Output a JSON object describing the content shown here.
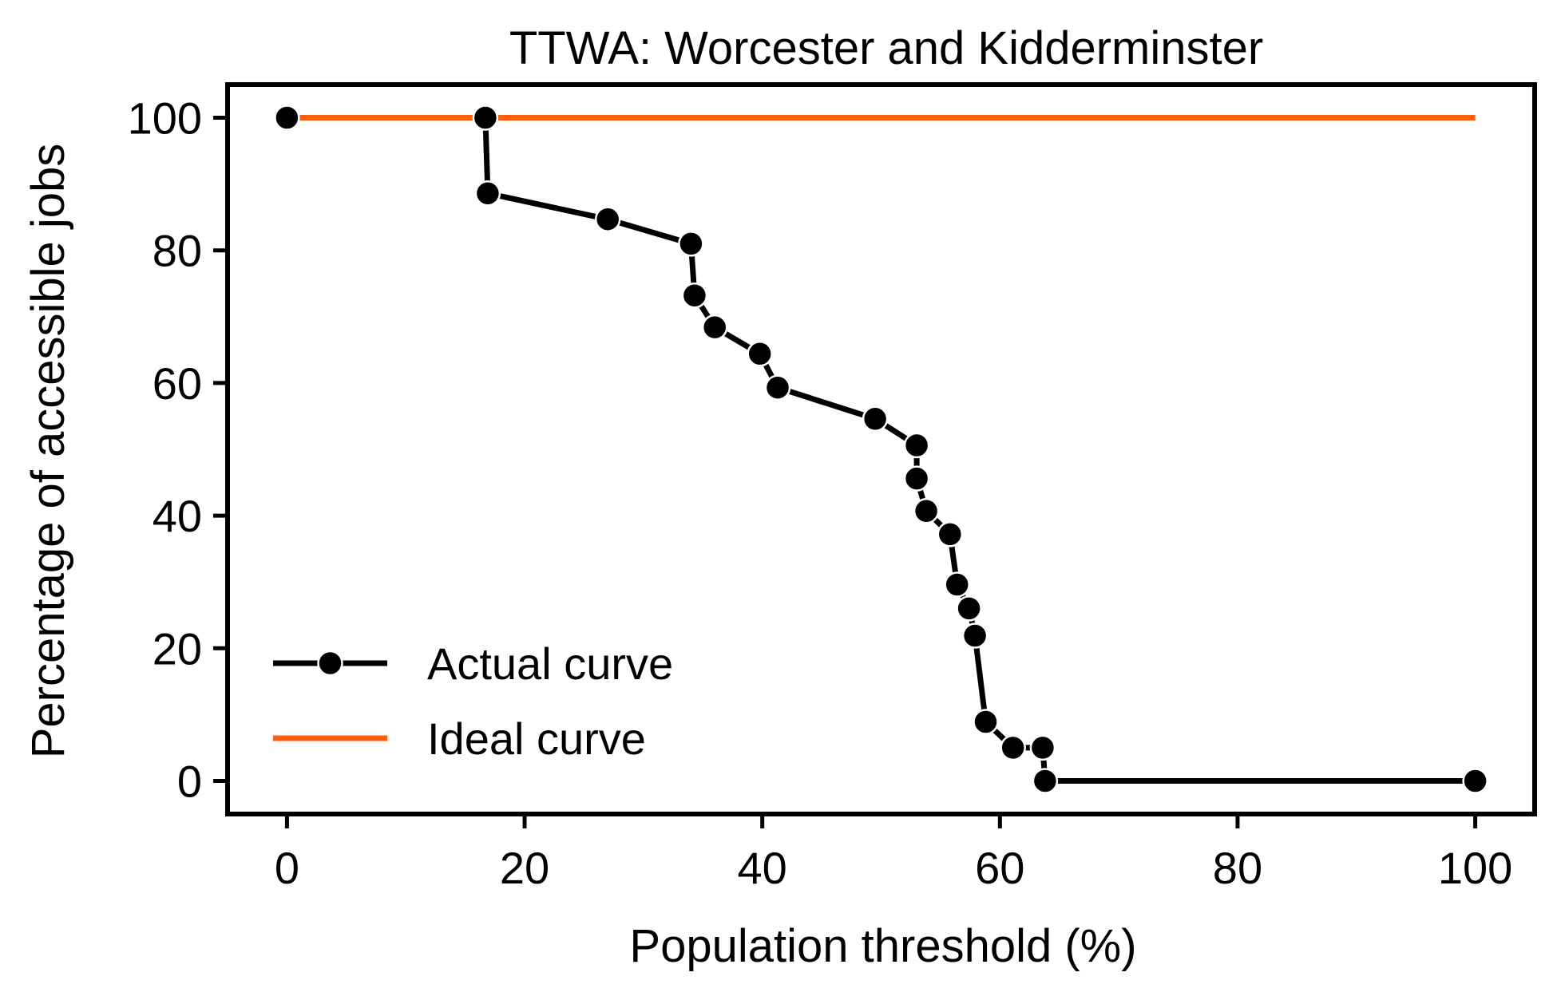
{
  "chart_data": {
    "type": "line",
    "title": "TTWA: Worcester and Kidderminster",
    "xlabel": "Population threshold (%)",
    "ylabel": "Percentage of accessible jobs",
    "xlim": [
      -5,
      105
    ],
    "ylim": [
      -5,
      105
    ],
    "xticks": [
      0,
      20,
      40,
      60,
      80,
      100
    ],
    "yticks": [
      0,
      20,
      40,
      60,
      80,
      100
    ],
    "xtick_labels": [
      "0",
      "20",
      "40",
      "60",
      "80",
      "100"
    ],
    "ytick_labels": [
      "0",
      "20",
      "40",
      "60",
      "80",
      "100"
    ],
    "grid": false,
    "legend_position": "lower-left",
    "series": [
      {
        "name": "Actual curve",
        "color": "#000000",
        "marker": "circle",
        "x": [
          0,
          16.7,
          16.9,
          27.0,
          34.0,
          34.3,
          36.0,
          39.8,
          41.3,
          49.5,
          53.0,
          53.0,
          53.8,
          55.8,
          56.4,
          57.4,
          57.9,
          58.8,
          61.1,
          63.6,
          63.8,
          100
        ],
        "y": [
          100,
          100,
          88.6,
          84.7,
          81.0,
          73.2,
          68.4,
          64.4,
          59.3,
          54.6,
          50.6,
          45.6,
          40.7,
          37.2,
          29.6,
          26.0,
          21.9,
          8.9,
          5.0,
          5.0,
          0,
          0
        ]
      },
      {
        "name": "Ideal curve",
        "color": "#ff5e0e",
        "marker": "none",
        "x": [
          0,
          100
        ],
        "y": [
          100,
          100
        ]
      }
    ]
  }
}
